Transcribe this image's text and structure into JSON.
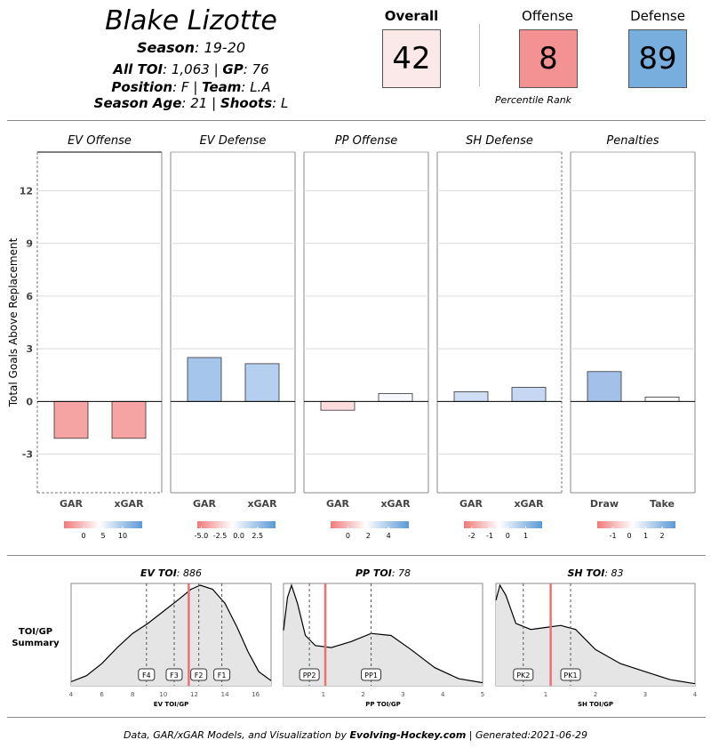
{
  "player": {
    "name": "Blake Lizotte",
    "season_label": "Season",
    "season": "19-20",
    "toi_label": "All TOI",
    "toi": "1,063",
    "gp_label": "GP",
    "gp": "76",
    "position_label": "Position",
    "position": "F",
    "team_label": "Team",
    "team": "L.A",
    "age_label": "Season Age",
    "age": "21",
    "shoots_label": "Shoots",
    "shoots": "L"
  },
  "percentiles": {
    "overall_label": "Overall",
    "overall": "42",
    "offense_label": "Offense",
    "offense": "8",
    "defense_label": "Defense",
    "defense": "89",
    "caption": "Percentile Rank",
    "colors": {
      "overall": "#fbe9ea",
      "offense": "#f39193",
      "defense": "#78aede"
    }
  },
  "chart_data": [
    {
      "type": "bar",
      "ylabel": "Total Goals Above Replacement",
      "yticks": [
        -3,
        0,
        3,
        6,
        9,
        12
      ],
      "ylim": [
        -5.2,
        14.2
      ],
      "panels": [
        {
          "title": "EV Offense",
          "categories": [
            "GAR",
            "xGAR"
          ],
          "values": [
            -2.1,
            -2.1
          ],
          "colors": [
            "#f6a3a3",
            "#f6a3a3"
          ],
          "legend": {
            "ticks": [
              "0",
              "5",
              "10"
            ],
            "tick_pos": [
              0.25,
              0.5,
              0.75
            ]
          }
        },
        {
          "title": "EV Defense",
          "categories": [
            "GAR",
            "xGAR"
          ],
          "values": [
            2.5,
            2.15
          ],
          "colors": [
            "#a6c5eb",
            "#b4cfef"
          ],
          "legend": {
            "ticks": [
              "-5.0",
              "-2.5",
              "0.0",
              "2.5"
            ],
            "tick_pos": [
              0.05,
              0.29,
              0.53,
              0.77
            ]
          }
        },
        {
          "title": "PP Offense",
          "categories": [
            "GAR",
            "xGAR"
          ],
          "values": [
            -0.5,
            0.45
          ],
          "colors": [
            "#fcdcdc",
            "#f6f7fd"
          ],
          "legend": {
            "ticks": [
              "0",
              "2",
              "4"
            ],
            "tick_pos": [
              0.22,
              0.48,
              0.74
            ]
          }
        },
        {
          "title": "SH Defense",
          "categories": [
            "GAR",
            "xGAR"
          ],
          "values": [
            0.55,
            0.8
          ],
          "colors": [
            "#cfdef4",
            "#c5d7f2"
          ],
          "legend": {
            "ticks": [
              "-2",
              "-1",
              "0",
              "1"
            ],
            "tick_pos": [
              0.1,
              0.33,
              0.56,
              0.79
            ]
          }
        },
        {
          "title": "Penalties",
          "categories": [
            "Draw",
            "Take"
          ],
          "values": [
            1.7,
            0.25
          ],
          "colors": [
            "#a2c0e8",
            "#fbfbfe"
          ],
          "legend": {
            "ticks": [
              "-1",
              "0",
              "1",
              "2"
            ],
            "tick_pos": [
              0.2,
              0.41,
              0.62,
              0.83
            ]
          }
        }
      ]
    },
    {
      "type": "area",
      "row_label": [
        "TOI/GP",
        "Summary"
      ],
      "panels": [
        {
          "title_label": "EV TOI",
          "title_value": "886",
          "xlabel": "EV TOI/GP",
          "xlim": [
            4,
            17
          ],
          "xticks": [
            4,
            6,
            8,
            10,
            12,
            14,
            16
          ],
          "player_value": 11.65,
          "lines": [
            {
              "label": "F4",
              "x": 8.9
            },
            {
              "label": "F3",
              "x": 10.7
            },
            {
              "label": "F2",
              "x": 12.3
            },
            {
              "label": "F1",
              "x": 13.8
            }
          ],
          "density": [
            [
              4,
              0.04
            ],
            [
              5,
              0.1
            ],
            [
              6,
              0.22
            ],
            [
              7,
              0.38
            ],
            [
              8,
              0.52
            ],
            [
              9,
              0.62
            ],
            [
              10,
              0.74
            ],
            [
              11,
              0.86
            ],
            [
              11.8,
              0.96
            ],
            [
              12.4,
              1.0
            ],
            [
              13.2,
              0.96
            ],
            [
              14,
              0.82
            ],
            [
              14.8,
              0.58
            ],
            [
              15.5,
              0.34
            ],
            [
              16.2,
              0.14
            ],
            [
              17,
              0.05
            ]
          ]
        },
        {
          "title_label": "PP TOI",
          "title_value": "78",
          "xlabel": "PP TOI/GP",
          "xlim": [
            0,
            5
          ],
          "xticks": [
            1,
            2,
            3,
            4,
            5
          ],
          "player_value": 1.05,
          "lines": [
            {
              "label": "PP2",
              "x": 0.65
            },
            {
              "label": "PP1",
              "x": 2.2
            }
          ],
          "density": [
            [
              0,
              0.55
            ],
            [
              0.1,
              0.88
            ],
            [
              0.2,
              1.0
            ],
            [
              0.35,
              0.82
            ],
            [
              0.55,
              0.5
            ],
            [
              0.8,
              0.4
            ],
            [
              1.2,
              0.38
            ],
            [
              1.7,
              0.44
            ],
            [
              2.2,
              0.52
            ],
            [
              2.7,
              0.5
            ],
            [
              3.2,
              0.36
            ],
            [
              3.8,
              0.18
            ],
            [
              4.4,
              0.07
            ],
            [
              5,
              0.03
            ]
          ]
        },
        {
          "title_label": "SH TOI",
          "title_value": "83",
          "xlabel": "SH TOI/GP",
          "xlim": [
            0,
            4
          ],
          "xticks": [
            1,
            2,
            3,
            4
          ],
          "player_value": 1.1,
          "lines": [
            {
              "label": "PK2",
              "x": 0.55
            },
            {
              "label": "PK1",
              "x": 1.5
            }
          ],
          "density": [
            [
              0,
              0.85
            ],
            [
              0.08,
              1.0
            ],
            [
              0.2,
              0.9
            ],
            [
              0.4,
              0.62
            ],
            [
              0.7,
              0.56
            ],
            [
              1.0,
              0.58
            ],
            [
              1.3,
              0.6
            ],
            [
              1.6,
              0.56
            ],
            [
              2.0,
              0.36
            ],
            [
              2.5,
              0.22
            ],
            [
              3.0,
              0.14
            ],
            [
              3.5,
              0.06
            ],
            [
              4,
              0.02
            ]
          ]
        }
      ]
    }
  ],
  "footer": {
    "prefix": "Data, GAR/xGAR Models, and Visualization by ",
    "site": "Evolving-Hockey.com",
    "sep": " | Generated:",
    "date": "2021-06-29"
  }
}
